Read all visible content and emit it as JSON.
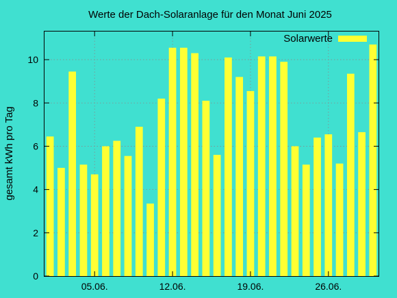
{
  "chart_data": {
    "type": "bar",
    "title": "Werte der Dach-Solaranlage für den Monat Juni 2025",
    "xlabel": "",
    "ylabel": "gesamt kWh pro Tag",
    "bar_color": "#FFFF33",
    "background_color": "#40E0D0",
    "grid": true,
    "legend_position": "top-right",
    "ylim": [
      0,
      11.3
    ],
    "y_ticks": [
      0,
      2,
      4,
      6,
      8,
      10
    ],
    "x_ticks": [
      {
        "day": 5,
        "label": "05.06."
      },
      {
        "day": 12,
        "label": "12.06."
      },
      {
        "day": 19,
        "label": "19.06."
      },
      {
        "day": 26,
        "label": "26.06."
      }
    ],
    "categories": [
      1,
      2,
      3,
      4,
      5,
      6,
      7,
      8,
      9,
      10,
      11,
      12,
      13,
      14,
      15,
      16,
      17,
      18,
      19,
      20,
      21,
      22,
      23,
      24,
      25,
      26,
      27,
      28,
      29,
      30
    ],
    "series": [
      {
        "name": "Solarwerte",
        "values": [
          6.45,
          5.0,
          9.45,
          5.15,
          4.7,
          6.0,
          6.25,
          5.55,
          6.9,
          3.35,
          8.2,
          10.55,
          10.55,
          10.3,
          8.1,
          5.6,
          10.1,
          9.2,
          8.55,
          10.15,
          10.15,
          9.9,
          6.0,
          5.15,
          6.4,
          6.55,
          5.2,
          9.35,
          6.65,
          10.7
        ]
      }
    ]
  }
}
